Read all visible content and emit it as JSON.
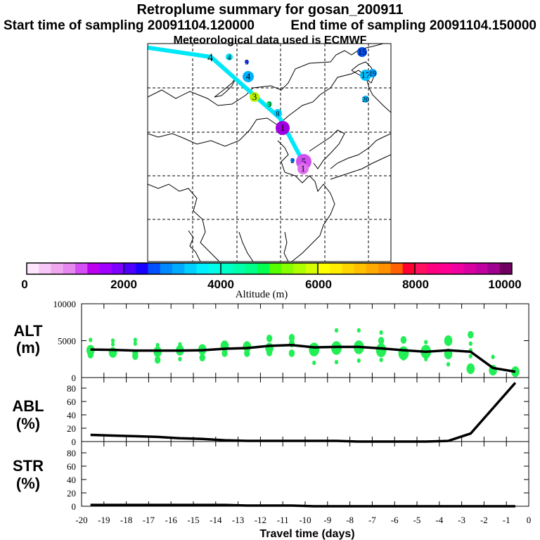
{
  "header": {
    "title": "Retroplume summary for gosan_200911",
    "start_label": "Start time of sampling 20091104.120000",
    "end_label": "End time of sampling 20091104.150000",
    "met_label": "Meteorological data used is ECMWF"
  },
  "map": {
    "markers": [
      {
        "label": "4",
        "color": "#00e0f0"
      },
      {
        "label": "5",
        "color": "#1a40ff"
      },
      {
        "label": "4",
        "color": "#00b0ff"
      },
      {
        "label": "3",
        "color": "#b8f000"
      },
      {
        "label": "3",
        "color": "#00f080"
      },
      {
        "label": "8",
        "color": "#00d0ff"
      },
      {
        "label": "1",
        "color": "#a000e0"
      },
      {
        "label": "5",
        "color": "#d050f0"
      },
      {
        "label": "1",
        "color": "#e070f0"
      },
      {
        "label": "2",
        "color": "#0070ff"
      },
      {
        "label": "15",
        "color": "#0050f0"
      },
      {
        "label": "17",
        "color": "#00c0ff"
      },
      {
        "label": "19",
        "color": "#00a0ff"
      },
      {
        "label": "20",
        "color": "#00b0ff"
      }
    ],
    "trajectory_label": "4",
    "trajectory_color": "#00e8f8"
  },
  "colorbar": {
    "title": "Altitude (m)",
    "tick_labels": [
      "0",
      "2000",
      "4000",
      "6000",
      "8000",
      "10000"
    ],
    "range": [
      0,
      10000
    ],
    "colors": [
      "#ffe6ff",
      "#f7c7f7",
      "#efa8ef",
      "#e588f0",
      "#d44ef5",
      "#bb00f0",
      "#a000ff",
      "#7f00ff",
      "#4d00ff",
      "#1a00ff",
      "#0050ff",
      "#0088ff",
      "#00aaff",
      "#00cfff",
      "#00f0ff",
      "#00ffe8",
      "#00ffc8",
      "#00ffaa",
      "#00ff88",
      "#00ff50",
      "#55ff00",
      "#88ff00",
      "#b0ff00",
      "#d5ff00",
      "#ffff00",
      "#ffee00",
      "#ffd500",
      "#ffc000",
      "#ffaa00",
      "#ff9000",
      "#ff6000",
      "#ff0030",
      "#ff1060",
      "#ff0080",
      "#ff0090",
      "#f000a0",
      "#d800a0",
      "#c000a0",
      "#a00090",
      "#700060"
    ]
  },
  "chart_data": [
    {
      "type": "line",
      "panel": "ALT",
      "ylabel_line1": "ALT",
      "ylabel_line2": "(m)",
      "ylim": [
        0,
        10000
      ],
      "yticks": [
        "0",
        "5000",
        "10000"
      ],
      "dot_color": "#22ee55",
      "mean_line": {
        "x": [
          -19.6,
          -18.6,
          -17.6,
          -16.6,
          -15.6,
          -14.6,
          -13.6,
          -12.6,
          -11.6,
          -10.6,
          -9.6,
          -8.6,
          -7.6,
          -6.6,
          -5.6,
          -4.6,
          -3.6,
          -2.6,
          -1.6,
          -0.6
        ],
        "y": [
          3800,
          3750,
          3650,
          3650,
          3650,
          3700,
          3900,
          4000,
          4300,
          4400,
          4100,
          4150,
          4150,
          3950,
          3700,
          3500,
          3700,
          3500,
          1300,
          800
        ]
      },
      "spread_points": [
        [
          -19.6,
          3700,
          3
        ],
        [
          -19.6,
          5100,
          1
        ],
        [
          -19.6,
          3100,
          2
        ],
        [
          -18.6,
          3400,
          3
        ],
        [
          -18.6,
          5000,
          1
        ],
        [
          -18.6,
          4500,
          1
        ],
        [
          -17.6,
          3300,
          2
        ],
        [
          -17.6,
          5100,
          1
        ],
        [
          -17.6,
          4600,
          1
        ],
        [
          -17.6,
          2900,
          2
        ],
        [
          -16.6,
          3500,
          3
        ],
        [
          -16.6,
          4400,
          1
        ],
        [
          -16.6,
          2400,
          2
        ],
        [
          -15.6,
          3700,
          3
        ],
        [
          -15.6,
          4500,
          1
        ],
        [
          -15.6,
          2500,
          1
        ],
        [
          -14.6,
          3800,
          3
        ],
        [
          -14.6,
          2700,
          2
        ],
        [
          -13.6,
          4300,
          3
        ],
        [
          -13.6,
          3300,
          2
        ],
        [
          -12.6,
          4200,
          3
        ],
        [
          -12.6,
          3300,
          2
        ],
        [
          -11.6,
          5300,
          2
        ],
        [
          -11.6,
          4000,
          3
        ],
        [
          -11.6,
          3400,
          2
        ],
        [
          -10.6,
          5400,
          2
        ],
        [
          -10.6,
          4600,
          2
        ],
        [
          -10.6,
          3300,
          2
        ],
        [
          -9.6,
          3800,
          4
        ],
        [
          -9.6,
          2000,
          1
        ],
        [
          -8.6,
          4000,
          4
        ],
        [
          -8.6,
          2100,
          1
        ],
        [
          -8.6,
          6400,
          1
        ],
        [
          -7.6,
          4100,
          4
        ],
        [
          -7.6,
          6400,
          1
        ],
        [
          -7.6,
          2300,
          1
        ],
        [
          -6.6,
          3700,
          4
        ],
        [
          -6.6,
          5000,
          2
        ],
        [
          -6.6,
          6100,
          1
        ],
        [
          -6.6,
          2400,
          1
        ],
        [
          -5.6,
          3300,
          4
        ],
        [
          -5.6,
          5100,
          2
        ],
        [
          -5.6,
          2600,
          1
        ],
        [
          -4.6,
          3500,
          4
        ],
        [
          -4.6,
          4800,
          1
        ],
        [
          -4.6,
          2500,
          1
        ],
        [
          -3.6,
          5000,
          3
        ],
        [
          -3.6,
          3200,
          3
        ],
        [
          -3.6,
          1800,
          1
        ],
        [
          -2.6,
          5800,
          2
        ],
        [
          -2.6,
          4600,
          1
        ],
        [
          -2.6,
          3700,
          1
        ],
        [
          -2.6,
          2900,
          1
        ],
        [
          -2.6,
          1200,
          3
        ],
        [
          -1.6,
          1000,
          3
        ],
        [
          -1.6,
          2800,
          1
        ],
        [
          -0.6,
          800,
          3
        ]
      ]
    },
    {
      "type": "line",
      "panel": "ABL",
      "ylabel_line1": "ABL",
      "ylabel_line2": "(%)",
      "ylim": [
        0,
        96
      ],
      "yticks": [
        "0",
        "20",
        "40",
        "60",
        "80"
      ],
      "x": [
        -19.6,
        -18.6,
        -17.6,
        -16.6,
        -15.6,
        -14.6,
        -13.6,
        -12.6,
        -11.6,
        -10.6,
        -9.6,
        -8.6,
        -7.6,
        -6.6,
        -5.6,
        -4.6,
        -3.6,
        -2.6,
        -1.6,
        -0.6
      ],
      "y": [
        10,
        9,
        8,
        7,
        5,
        4,
        2,
        1,
        1,
        1,
        1,
        1,
        0,
        0,
        0,
        0,
        1,
        12,
        50,
        88
      ]
    },
    {
      "type": "line",
      "panel": "STR",
      "ylabel_line1": "STR",
      "ylabel_line2": "(%)",
      "ylim": [
        0,
        96
      ],
      "yticks": [
        "0",
        "20",
        "40",
        "60",
        "80"
      ],
      "x": [
        -19.6,
        -18.6,
        -17.6,
        -16.6,
        -15.6,
        -14.6,
        -13.6,
        -12.6,
        -11.6,
        -10.6,
        -9.6,
        -8.6,
        -7.6,
        -6.6,
        -5.6,
        -4.6,
        -3.6,
        -2.6,
        -1.6,
        -0.6
      ],
      "y": [
        2,
        2,
        2,
        2,
        2,
        2,
        2,
        1,
        1,
        1,
        0,
        0,
        0,
        0,
        0,
        0,
        0,
        0,
        0,
        0
      ]
    }
  ],
  "xaxis": {
    "label": "Travel time (days)",
    "xlim": [
      -20,
      0
    ],
    "tick_labels": [
      "-20",
      "-19",
      "-18",
      "-17",
      "-16",
      "-15",
      "-14",
      "-13",
      "-12",
      "-11",
      "-10",
      "-9",
      "-8",
      "-7",
      "-6",
      "-5",
      "-4",
      "-3",
      "-2",
      "-1",
      "0"
    ]
  }
}
